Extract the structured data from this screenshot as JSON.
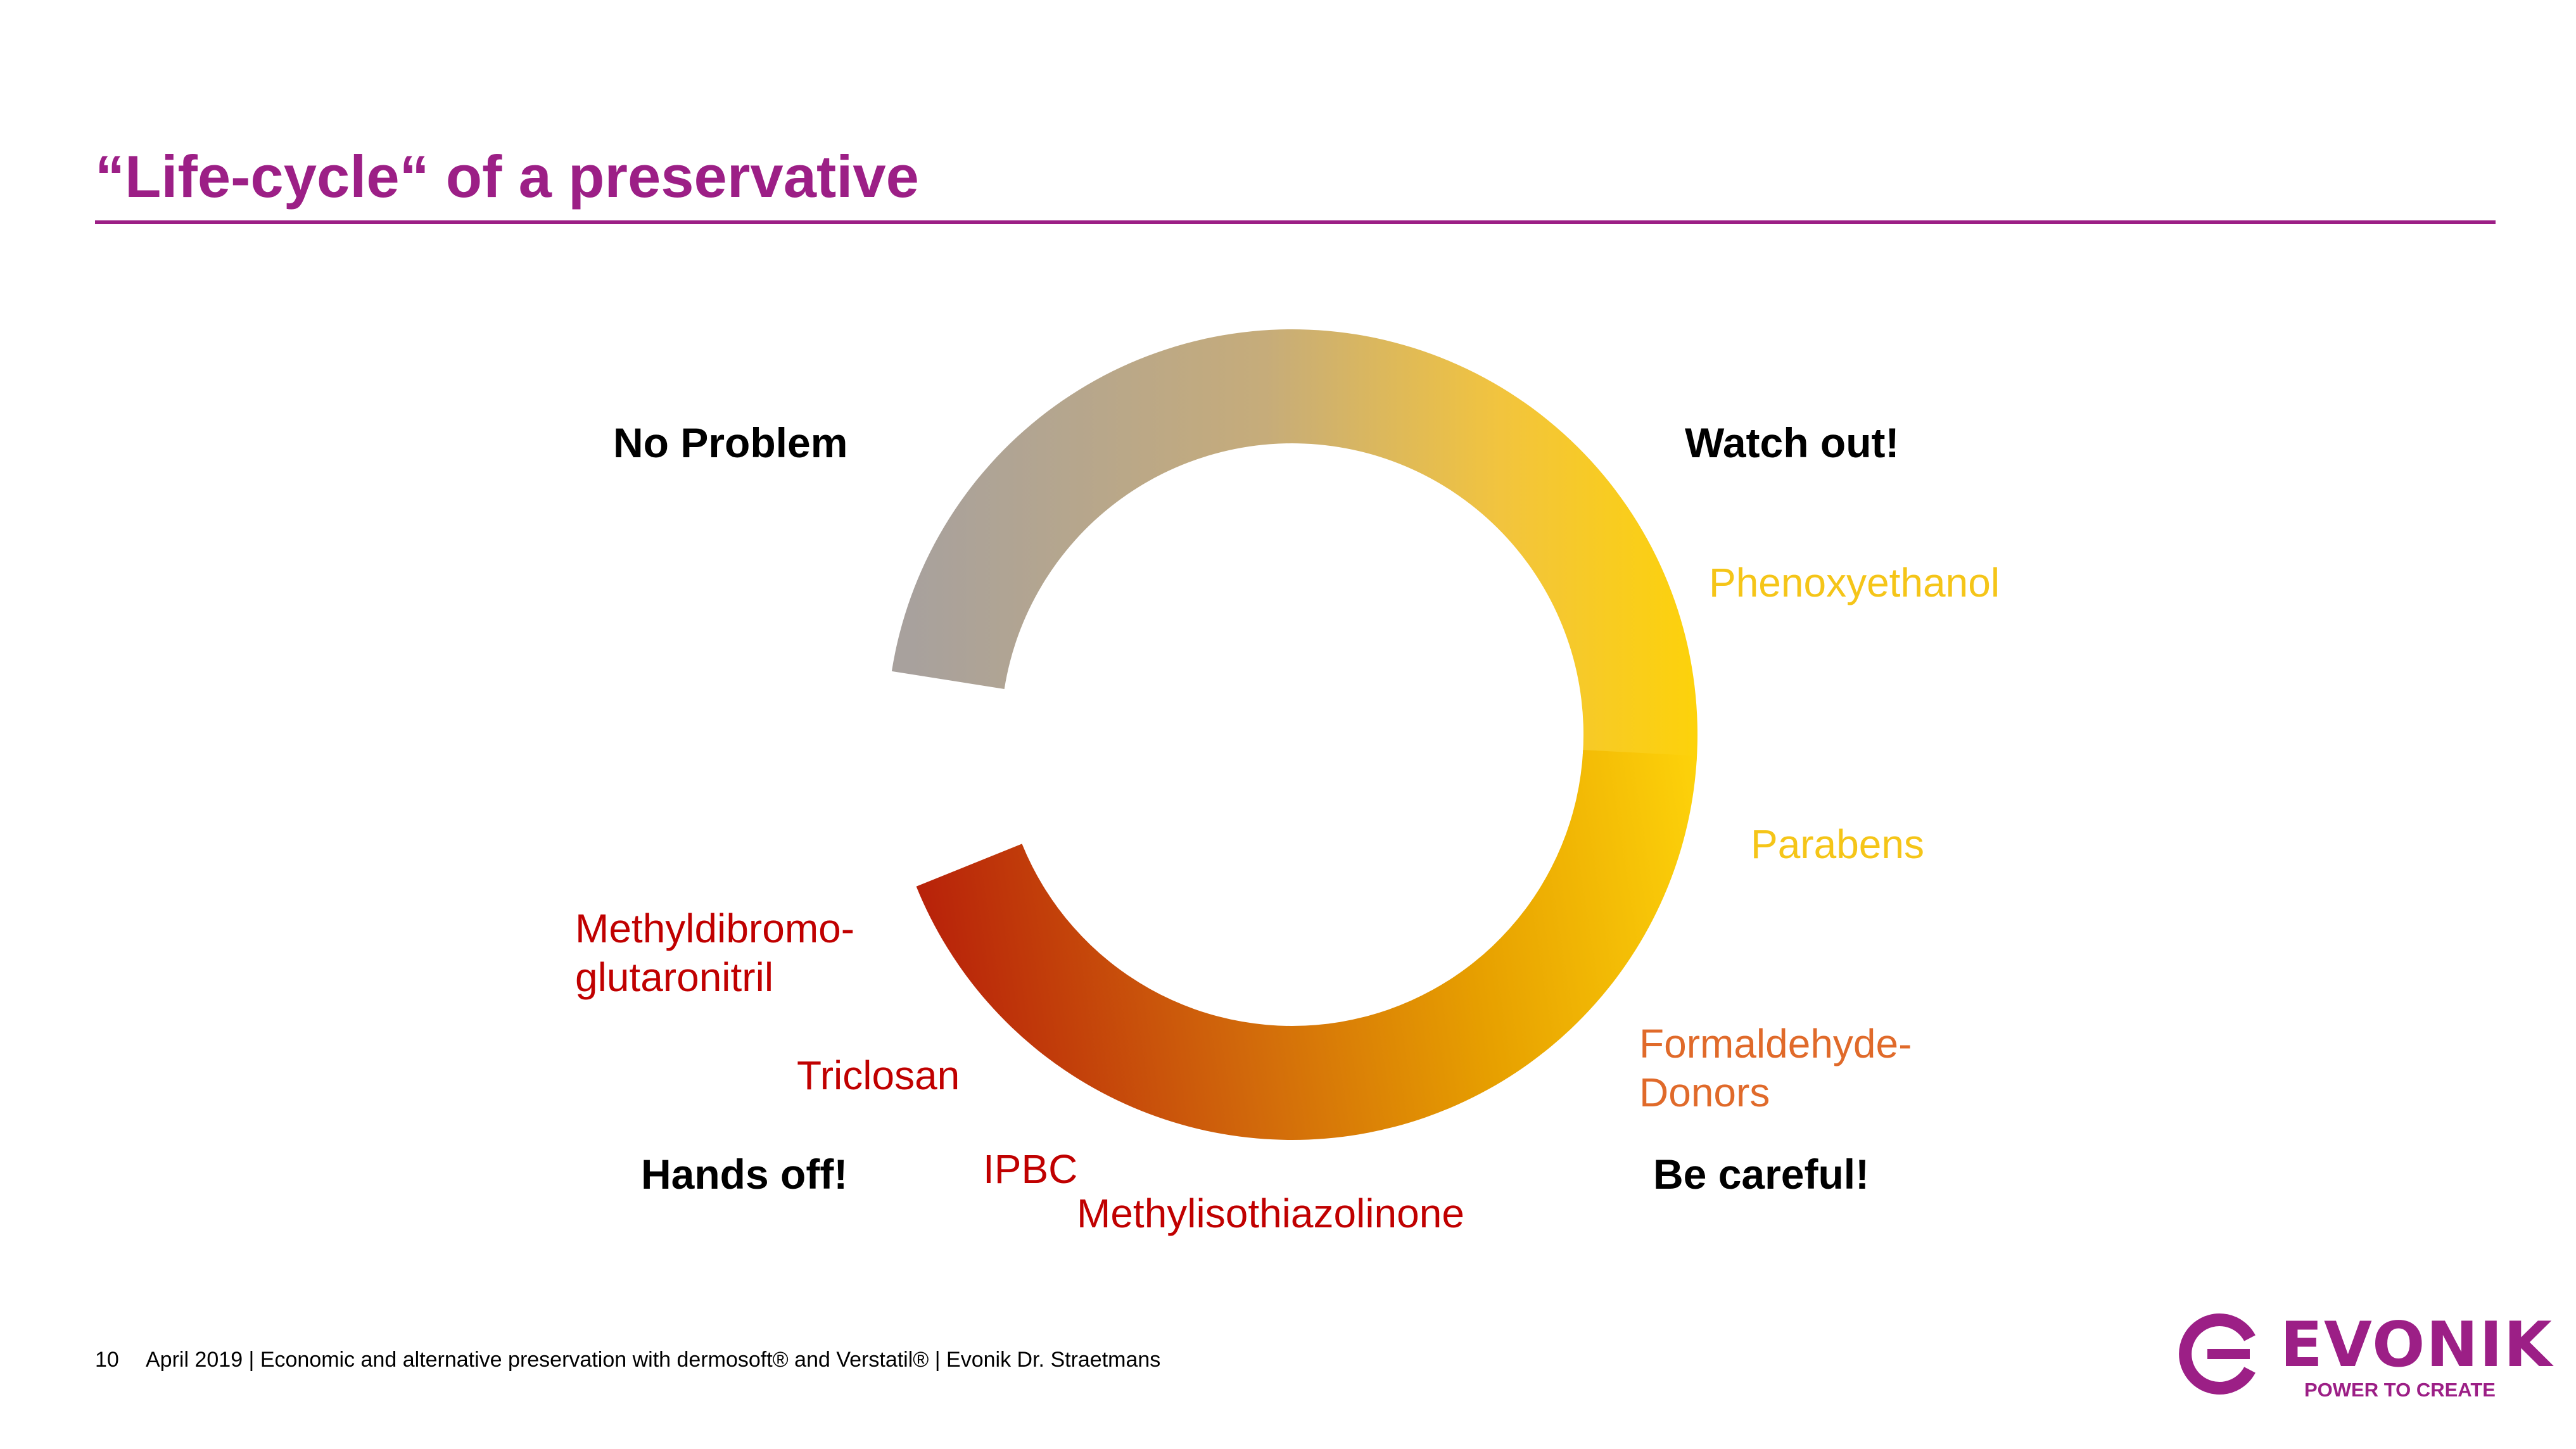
{
  "slide": {
    "title": "“Life-cycle“ of a preservative"
  },
  "cycle": {
    "stages": {
      "no_problem": "No Problem",
      "watch_out": "Watch out!",
      "be_careful": "Be careful!",
      "hands_off": "Hands off!"
    },
    "colors": {
      "grey": "#a8a19d",
      "tan": "#c6ac7a",
      "light_yellow": "#f2c43e",
      "yellow": "#fdd20a",
      "amber": "#e7a000",
      "orange": "#d1680b",
      "red": "#b51a0a"
    },
    "substances": {
      "phenoxyethanol": {
        "label": "Phenoxyethanol",
        "color": "#f5c518"
      },
      "parabens": {
        "label": "Parabens",
        "color": "#f5c518"
      },
      "formaldehyde": {
        "line1": "Formaldehyde-",
        "line2": "Donors",
        "color": "#e06a2a"
      },
      "methylisothiazolinone": {
        "label": "Methylisothiazolinone",
        "color": "#c00000"
      },
      "ipbc": {
        "label": "IPBC",
        "color": "#c00000"
      },
      "triclosan": {
        "label": "Triclosan",
        "color": "#c00000"
      },
      "methyldibromo": {
        "line1": "Methyldibromo-",
        "line2": "glutaronitril",
        "color": "#c00000"
      }
    }
  },
  "footer": {
    "page_number": "10",
    "text": "April 2019  |  Economic and alternative preservation with dermosoft® and Verstatil®  |  Evonik Dr. Straetmans"
  },
  "logo": {
    "wordmark": "EVONIK",
    "tagline": "POWER TO CREATE",
    "color": "#9c1f86"
  }
}
